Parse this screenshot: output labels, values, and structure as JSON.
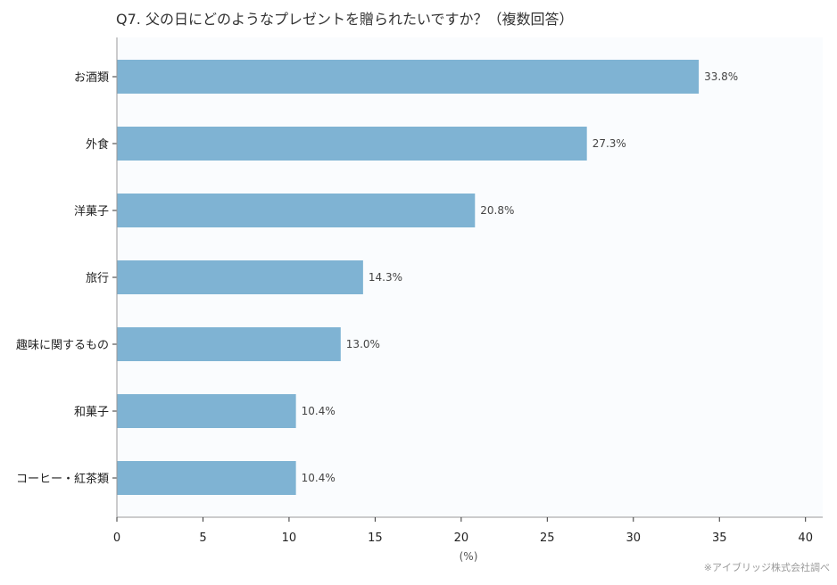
{
  "chart_data": {
    "type": "bar",
    "orientation": "horizontal",
    "title": "Q7. 父の日にどのようなプレゼントを贈られたいですか？（複数回答）",
    "xlabel": "(%)",
    "ylabel": "",
    "categories": [
      "お酒類",
      "外食",
      "洋菓子",
      "旅行",
      "趣味に関するもの",
      "和菓子",
      "コーヒー・紅茶類"
    ],
    "values": [
      33.8,
      27.3,
      20.8,
      14.3,
      13.0,
      10.4,
      10.4
    ],
    "value_labels": [
      "33.8%",
      "27.3%",
      "20.8%",
      "14.3%",
      "13.0%",
      "10.4%",
      "10.4%"
    ],
    "xlim": [
      0,
      41
    ],
    "x_ticks": [
      0,
      5,
      10,
      15,
      20,
      25,
      30,
      35,
      40
    ],
    "grid": false,
    "legend": "none",
    "bar_color": "#7fb3d3",
    "plot_background": "#fafcfe",
    "source_note": "※アイブリッジ株式会社調べ"
  }
}
